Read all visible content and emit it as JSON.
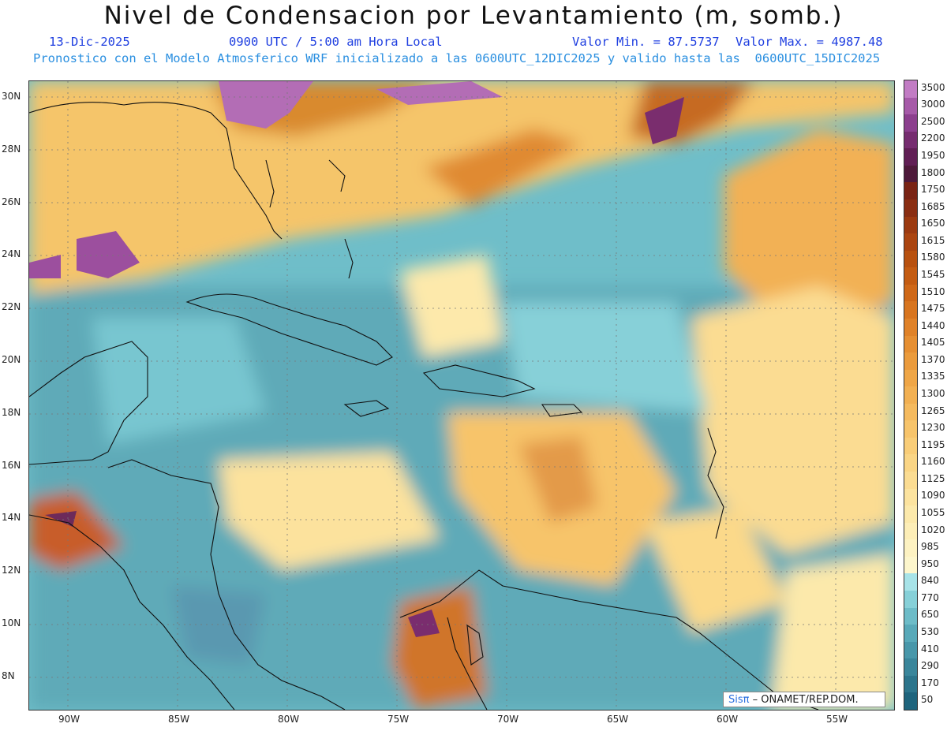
{
  "title": "Nivel de Condensacion por Levantamiento (m, somb.)",
  "date": "13-Dic-2025",
  "time": "0900 UTC / 5:00 am Hora Local",
  "min": "Valor Min. = 87.5737",
  "max": "Valor Max. = 4987.48",
  "model_line": "Pronostico con el Modelo Atmosferico WRF inicializado a las 0600UTC_12DIC2025 y valido hasta las  0600UTC_15DIC2025",
  "lat_labels": [
    "30N",
    "28N",
    "26N",
    "24N",
    "22N",
    "20N",
    "18N",
    "16N",
    "14N",
    "12N",
    "10N",
    "8N"
  ],
  "lon_labels": [
    "90W",
    "85W",
    "80W",
    "75W",
    "70W",
    "65W",
    "60W",
    "55W"
  ],
  "colorbar": {
    "labels": [
      "3500",
      "3000",
      "2500",
      "2200",
      "1950",
      "1800",
      "1750",
      "1685",
      "1650",
      "1615",
      "1580",
      "1545",
      "1510",
      "1475",
      "1440",
      "1405",
      "1370",
      "1335",
      "1300",
      "1265",
      "1230",
      "1195",
      "1160",
      "1125",
      "1090",
      "1055",
      "1020",
      "985",
      "950",
      "840",
      "770",
      "650",
      "530",
      "410",
      "290",
      "170",
      "50"
    ],
    "colors": [
      "#c27cc4",
      "#a65aa8",
      "#8c3f8e",
      "#762d70",
      "#611f55",
      "#4e1a3a",
      "#7a2414",
      "#8a2e12",
      "#9c3a10",
      "#ab4510",
      "#b8510f",
      "#c45c12",
      "#cf6818",
      "#d8751f",
      "#e08228",
      "#e68f32",
      "#eb9b3c",
      "#efa647",
      "#f2b052",
      "#f5ba5e",
      "#f7c46b",
      "#f9cd78",
      "#fad585",
      "#fbdc92",
      "#fce39f",
      "#fce9ab",
      "#fdeeb7",
      "#fdf2c2",
      "#fdf6cc",
      "#a7e3e8",
      "#86d0d8",
      "#6dbcc8",
      "#58a9b9",
      "#4897aa",
      "#3a869b",
      "#2c758c",
      "#1e647d"
    ]
  },
  "credit": {
    "brand": "Sisπ",
    "text": "– ONAMET/REP.DOM."
  }
}
